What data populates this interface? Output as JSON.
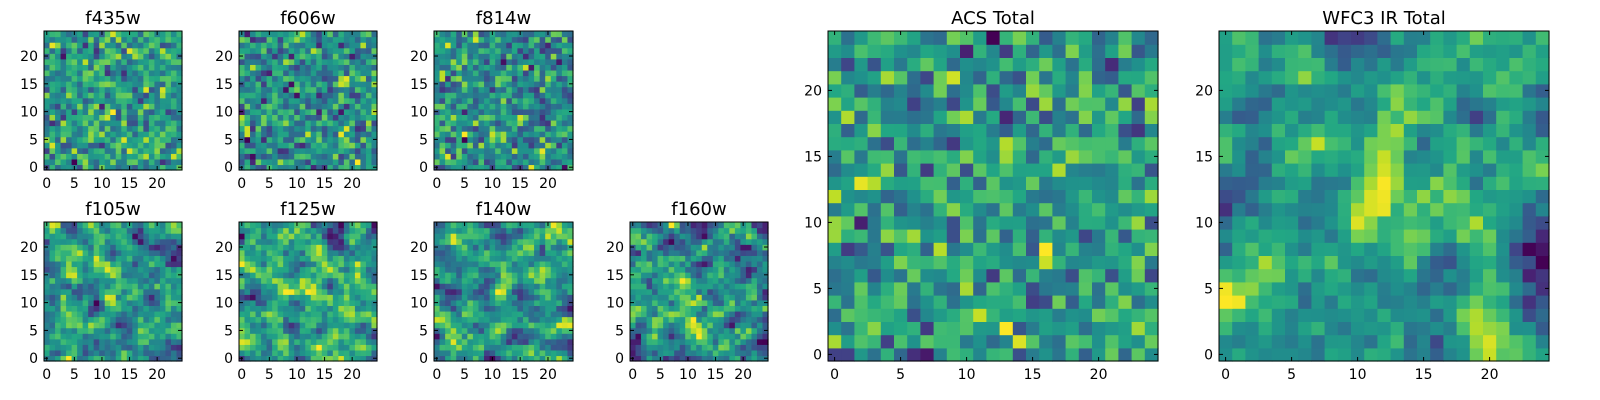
{
  "chart_data": [
    {
      "type": "heatmap",
      "title": "f435w",
      "x_ticks": [
        "0",
        "5",
        "10",
        "15",
        "20"
      ],
      "y_ticks": [
        "0",
        "5",
        "10",
        "15",
        "20"
      ],
      "xlim": [
        -0.5,
        24.5
      ],
      "ylim": [
        -0.5,
        24.5
      ],
      "nx": 25,
      "ny": 25,
      "colormap": "viridis",
      "seed": 11,
      "smooth": 0,
      "vmax_clip": 1.0
    },
    {
      "type": "heatmap",
      "title": "f606w",
      "x_ticks": [
        "0",
        "5",
        "10",
        "15",
        "20"
      ],
      "y_ticks": [
        "0",
        "5",
        "10",
        "15",
        "20"
      ],
      "xlim": [
        -0.5,
        24.5
      ],
      "ylim": [
        -0.5,
        24.5
      ],
      "nx": 25,
      "ny": 25,
      "colormap": "viridis",
      "seed": 23,
      "smooth": 0,
      "vmax_clip": 1.0
    },
    {
      "type": "heatmap",
      "title": "f814w",
      "x_ticks": [
        "0",
        "5",
        "10",
        "15",
        "20"
      ],
      "y_ticks": [
        "0",
        "5",
        "10",
        "15",
        "20"
      ],
      "xlim": [
        -0.5,
        24.5
      ],
      "ylim": [
        -0.5,
        24.5
      ],
      "nx": 25,
      "ny": 25,
      "colormap": "viridis",
      "seed": 37,
      "smooth": 0,
      "vmax_clip": 1.0
    },
    {
      "type": "heatmap",
      "title": "f105w",
      "x_ticks": [
        "0",
        "5",
        "10",
        "15",
        "20"
      ],
      "y_ticks": [
        "0",
        "5",
        "10",
        "15",
        "20"
      ],
      "xlim": [
        -0.5,
        24.5
      ],
      "ylim": [
        -0.5,
        24.5
      ],
      "nx": 25,
      "ny": 25,
      "colormap": "viridis",
      "seed": 41,
      "smooth": 1,
      "vmax_clip": 1.0
    },
    {
      "type": "heatmap",
      "title": "f125w",
      "x_ticks": [
        "0",
        "5",
        "10",
        "15",
        "20"
      ],
      "y_ticks": [
        "0",
        "5",
        "10",
        "15",
        "20"
      ],
      "xlim": [
        -0.5,
        24.5
      ],
      "ylim": [
        -0.5,
        24.5
      ],
      "nx": 25,
      "ny": 25,
      "colormap": "viridis",
      "seed": 53,
      "smooth": 1,
      "vmax_clip": 1.0
    },
    {
      "type": "heatmap",
      "title": "f140w",
      "x_ticks": [
        "0",
        "5",
        "10",
        "15",
        "20"
      ],
      "y_ticks": [
        "0",
        "5",
        "10",
        "15",
        "20"
      ],
      "xlim": [
        -0.5,
        24.5
      ],
      "ylim": [
        -0.5,
        24.5
      ],
      "nx": 25,
      "ny": 25,
      "colormap": "viridis",
      "seed": 67,
      "smooth": 1,
      "vmax_clip": 1.0
    },
    {
      "type": "heatmap",
      "title": "f160w",
      "x_ticks": [
        "0",
        "5",
        "10",
        "15",
        "20"
      ],
      "y_ticks": [
        "0",
        "5",
        "10",
        "15",
        "20"
      ],
      "xlim": [
        -0.5,
        24.5
      ],
      "ylim": [
        -0.5,
        24.5
      ],
      "nx": 25,
      "ny": 25,
      "colormap": "viridis",
      "seed": 79,
      "smooth": 1,
      "vmax_clip": 1.0
    },
    {
      "type": "heatmap",
      "title": "ACS Total",
      "x_ticks": [
        "0",
        "5",
        "10",
        "15",
        "20"
      ],
      "y_ticks": [
        "0",
        "5",
        "10",
        "15",
        "20"
      ],
      "xlim": [
        -0.5,
        24.5
      ],
      "ylim": [
        -0.5,
        24.5
      ],
      "nx": 25,
      "ny": 25,
      "colormap": "viridis",
      "seed": 97,
      "smooth": 0,
      "vmax_clip": 1.0
    },
    {
      "type": "heatmap",
      "title": "WFC3 IR Total",
      "x_ticks": [
        "0",
        "5",
        "10",
        "15",
        "20"
      ],
      "y_ticks": [
        "0",
        "5",
        "10",
        "15",
        "20"
      ],
      "xlim": [
        -0.5,
        24.5
      ],
      "ylim": [
        -0.5,
        24.5
      ],
      "nx": 25,
      "ny": 25,
      "colormap": "viridis",
      "seed": 131,
      "smooth": 2,
      "vmax_clip": 1.0
    }
  ]
}
